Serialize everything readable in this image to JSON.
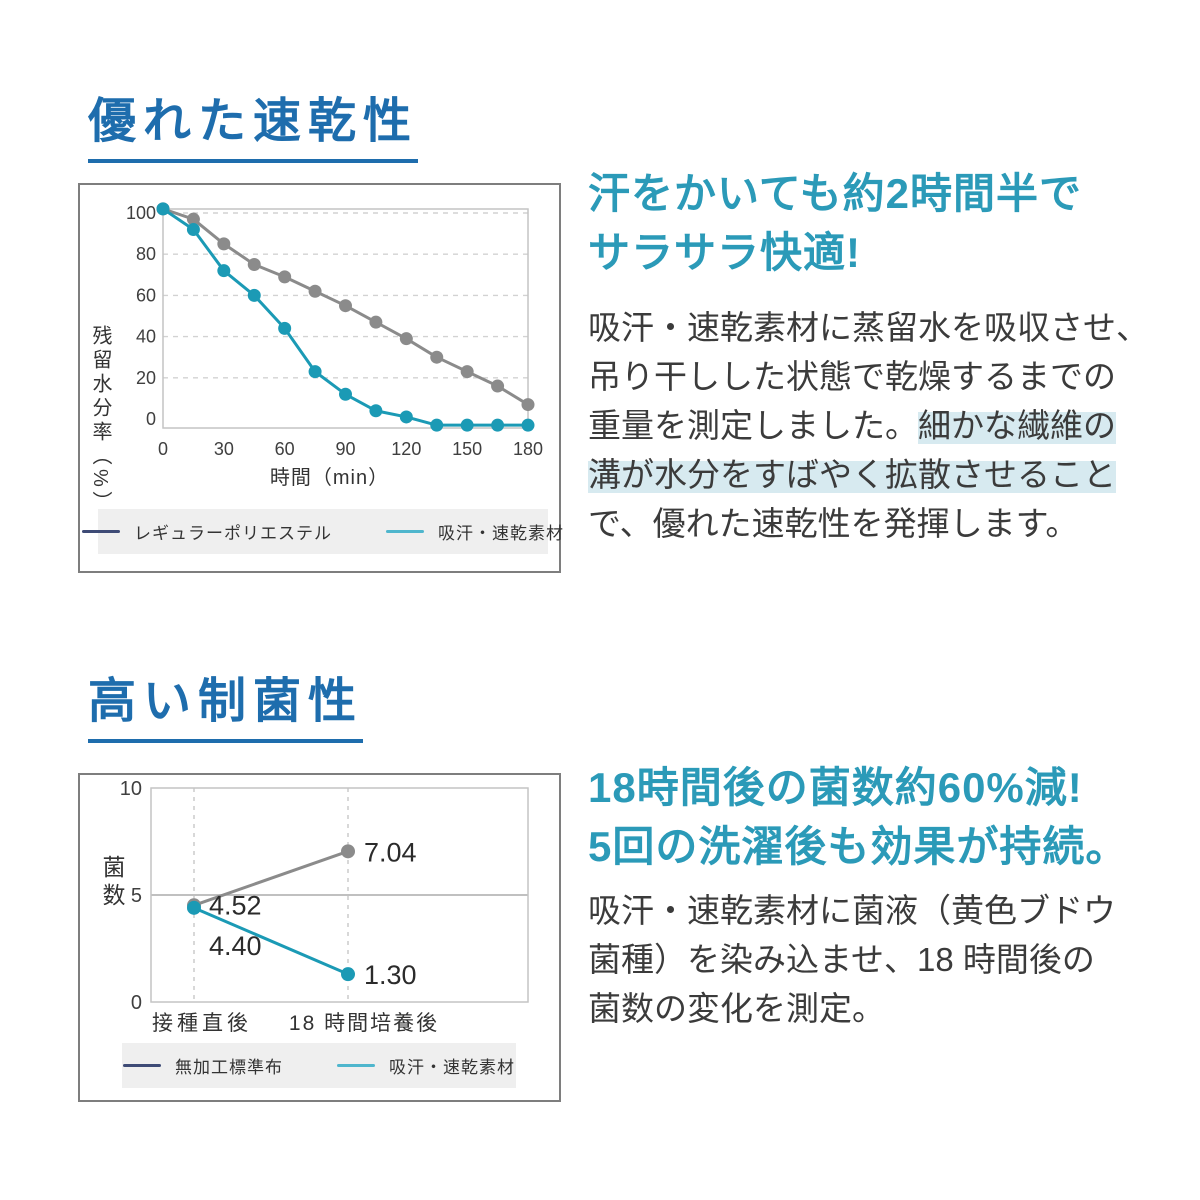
{
  "colors": {
    "title_blue": "#1e6dad",
    "headline_teal": "#2b9ab8",
    "highlight": "#d7eaf0",
    "body_text": "#3b3b3b",
    "series_gray": "#8b8b8b",
    "series_teal": "#1b9ab5",
    "legend_navy": "#3e4b76",
    "legend_teal": "#4fb6cd",
    "legend_bg": "#efefef"
  },
  "page": {
    "sections": [
      {
        "title": "優れた速乾性",
        "headline_lines": [
          "汗をかいても約2時間半で",
          "サラサラ快適!"
        ],
        "body_lines": [
          [
            {
              "t": "吸汗・速乾素材に蒸留水を吸収させ、",
              "hl": false
            }
          ],
          [
            {
              "t": "吊り干しした状態で乾燥するまでの",
              "hl": false
            }
          ],
          [
            {
              "t": "重量を測定しました。",
              "hl": false
            },
            {
              "t": "細かな繊維の",
              "hl": true
            }
          ],
          [
            {
              "t": "溝が水分をすばやく拡散させること",
              "hl": true
            }
          ],
          [
            {
              "t": "で、優れた速乾性を発揮します。",
              "hl": false
            }
          ]
        ]
      },
      {
        "title": "高い制菌性",
        "headline_lines": [
          "18時間後の菌数約60%減!",
          "5回の洗濯後も効果が持続。"
        ],
        "body_lines": [
          [
            {
              "t": "吸汗・速乾素材に菌液（黄色ブドウ",
              "hl": false
            }
          ],
          [
            {
              "t": "菌種）を染み込ませ、18 時間後の",
              "hl": false
            }
          ],
          [
            {
              "t": "菌数の変化を測定。",
              "hl": false
            }
          ]
        ]
      }
    ]
  },
  "chart_data": [
    {
      "type": "line",
      "title": "",
      "xlabel": "時間（min）",
      "ylabel": "残留水分率（%）",
      "x": [
        0,
        15,
        30,
        45,
        60,
        75,
        90,
        105,
        120,
        135,
        150,
        165,
        180
      ],
      "xticks": [
        0,
        30,
        60,
        90,
        120,
        150,
        180
      ],
      "yticks": [
        0,
        20,
        40,
        60,
        80,
        100
      ],
      "ylim": [
        -4,
        103
      ],
      "grid": "horizontal-dashed",
      "legend_position": "bottom",
      "series": [
        {
          "name": "レギュラーポリエステル",
          "legend_color": "#3e4b76",
          "line_color": "#8b8b8b",
          "values": [
            102,
            97,
            85,
            75,
            69,
            62,
            55,
            47,
            39,
            30,
            23,
            16,
            7
          ]
        },
        {
          "name": "吸汗・速乾素材",
          "legend_color": "#4fb6cd",
          "line_color": "#1b9ab5",
          "values": [
            102,
            92,
            72,
            60,
            44,
            23,
            12,
            4,
            1,
            -3,
            -3,
            -3,
            -3
          ]
        }
      ]
    },
    {
      "type": "line",
      "title": "",
      "xlabel": "",
      "ylabel": "菌数",
      "categories": [
        "接種直後",
        "18 時間培養後"
      ],
      "yticks": [
        0,
        5,
        10
      ],
      "ylim": [
        0,
        10
      ],
      "grid": "vertical-dashed, midline at 5",
      "legend_position": "bottom",
      "series": [
        {
          "name": "無加工標準布",
          "legend_color": "#3e4b76",
          "line_color": "#8b8b8b",
          "values": [
            4.52,
            7.04
          ],
          "labels": [
            "4.52",
            "7.04"
          ]
        },
        {
          "name": "吸汗・速乾素材",
          "legend_color": "#4fb6cd",
          "line_color": "#1b9ab5",
          "values": [
            4.4,
            1.3
          ],
          "labels": [
            "4.40",
            "1.30"
          ]
        }
      ]
    }
  ]
}
